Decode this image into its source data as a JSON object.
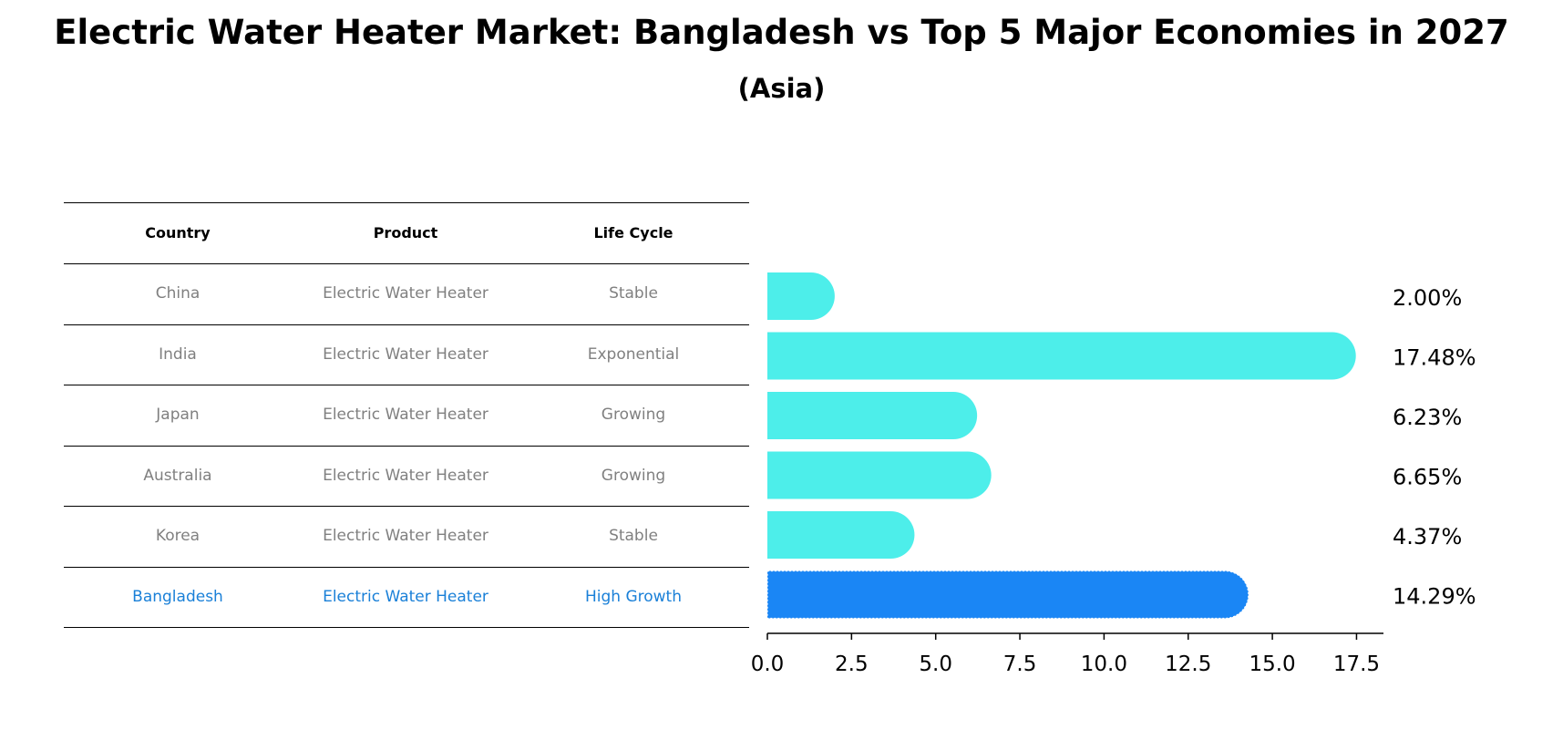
{
  "chart_data": {
    "type": "bar",
    "orientation": "horizontal",
    "title": "Electric Water Heater Market: Bangladesh vs Top 5 Major Economies in 2027",
    "subtitle": "(Asia)",
    "categories": [
      "China",
      "India",
      "Japan",
      "Australia",
      "Korea",
      "Bangladesh"
    ],
    "values": [
      2.0,
      17.48,
      6.23,
      6.65,
      4.37,
      14.29
    ],
    "value_labels": [
      "2.00%",
      "17.48%",
      "6.23%",
      "6.65%",
      "4.37%",
      "14.29%"
    ],
    "highlight": "Bangladesh",
    "xlim": [
      0,
      18.3
    ],
    "xticks": [
      "0.0",
      "2.5",
      "5.0",
      "7.5",
      "10.0",
      "12.5",
      "15.0",
      "17.5"
    ],
    "colors": {
      "bar": "#4deeea",
      "highlight_bar": "#1a86f5",
      "highlight_text": "#1a80d8",
      "muted_text": "#808080"
    }
  },
  "table": {
    "headers": [
      "Country",
      "Product",
      "Life Cycle"
    ],
    "rows": [
      [
        "China",
        "Electric Water Heater",
        "Stable"
      ],
      [
        "India",
        "Electric Water Heater",
        "Exponential"
      ],
      [
        "Japan",
        "Electric Water Heater",
        "Growing"
      ],
      [
        "Australia",
        "Electric Water Heater",
        "Growing"
      ],
      [
        "Korea",
        "Electric Water Heater",
        "Stable"
      ],
      [
        "Bangladesh",
        "Electric Water Heater",
        "High Growth"
      ]
    ]
  }
}
